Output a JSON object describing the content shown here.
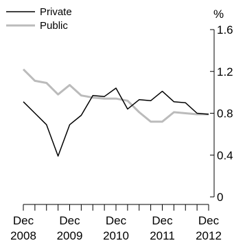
{
  "chart_data": {
    "type": "line",
    "unit_label": "%",
    "legend_placement": "top-left",
    "y_ticks": [
      "0",
      "0.4",
      "0.8",
      "1.2",
      "1.6"
    ],
    "ylim": [
      0,
      1.6
    ],
    "x_tick_labels": [
      {
        "top": "Dec",
        "bottom": "2008",
        "index": 0
      },
      {
        "top": "Dec",
        "bottom": "2009",
        "index": 4
      },
      {
        "top": "Dec",
        "bottom": "2010",
        "index": 8
      },
      {
        "top": "Dec",
        "bottom": "2011",
        "index": 12
      },
      {
        "top": "Dec",
        "bottom": "2012",
        "index": 16
      }
    ],
    "x": [
      "Dec 2008",
      "Mar 2009",
      "Jun 2009",
      "Sep 2009",
      "Dec 2009",
      "Mar 2010",
      "Jun 2010",
      "Sep 2010",
      "Dec 2010",
      "Mar 2011",
      "Jun 2011",
      "Sep 2011",
      "Dec 2011",
      "Mar 2012",
      "Jun 2012",
      "Sep 2012",
      "Dec 2012"
    ],
    "series": [
      {
        "name": "Private",
        "color": "#000000",
        "values": [
          0.91,
          0.8,
          0.69,
          0.39,
          0.69,
          0.78,
          0.97,
          0.96,
          1.04,
          0.84,
          0.93,
          0.92,
          1.01,
          0.91,
          0.9,
          0.8,
          0.79
        ]
      },
      {
        "name": "Public",
        "color": "#bbbbbb",
        "values": [
          1.22,
          1.11,
          1.09,
          0.98,
          1.07,
          0.97,
          0.95,
          0.94,
          0.94,
          0.92,
          0.81,
          0.72,
          0.72,
          0.81,
          0.8,
          0.79,
          0.79
        ]
      }
    ]
  }
}
